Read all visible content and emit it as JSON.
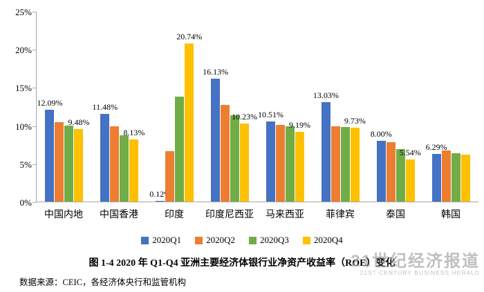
{
  "chart_data": {
    "type": "bar",
    "title": "图 1-4 2020 年 Q1-Q4 亚洲主要经济体银行业净资产收益率（ROE）变化",
    "source": "数据来源：CEIC，各经济体央行和监管机构",
    "categories": [
      "中国内地",
      "中国香港",
      "印度",
      "印度尼西亚",
      "马来西亚",
      "菲律宾",
      "泰国",
      "韩国"
    ],
    "series": [
      {
        "name": "2020Q1",
        "color": "#4472C4",
        "values": [
          12.09,
          11.48,
          0.12,
          16.13,
          10.51,
          13.03,
          8.0,
          6.29
        ]
      },
      {
        "name": "2020Q2",
        "color": "#ED7D31",
        "values": [
          10.4,
          9.9,
          6.6,
          12.7,
          10.1,
          9.9,
          7.8,
          6.7
        ]
      },
      {
        "name": "2020Q3",
        "color": "#70AD47",
        "values": [
          10.0,
          8.7,
          13.8,
          11.3,
          9.9,
          9.8,
          6.9,
          6.3
        ]
      },
      {
        "name": "2020Q4",
        "color": "#FFC000",
        "values": [
          9.48,
          8.13,
          20.74,
          10.23,
          9.19,
          9.73,
          5.54,
          6.2
        ]
      }
    ],
    "data_labels": [
      {
        "category": 0,
        "series": 0,
        "text": "12.09%"
      },
      {
        "category": 0,
        "series": 3,
        "text": "9.48%"
      },
      {
        "category": 1,
        "series": 0,
        "text": "11.48%"
      },
      {
        "category": 1,
        "series": 3,
        "text": "8.13%"
      },
      {
        "category": 2,
        "series": 0,
        "text": "0.12%"
      },
      {
        "category": 2,
        "series": 3,
        "text": "20.74%"
      },
      {
        "category": 3,
        "series": 0,
        "text": "16.13%"
      },
      {
        "category": 3,
        "series": 3,
        "text": "10.23%"
      },
      {
        "category": 4,
        "series": 0,
        "text": "10.51%"
      },
      {
        "category": 4,
        "series": 3,
        "text": "9.19%"
      },
      {
        "category": 5,
        "series": 0,
        "text": "13.03%"
      },
      {
        "category": 5,
        "series": 3,
        "text": "9.73%"
      },
      {
        "category": 6,
        "series": 0,
        "text": "8.00%"
      },
      {
        "category": 6,
        "series": 3,
        "text": "5.54%"
      },
      {
        "category": 7,
        "series": 0,
        "text": "6.29%"
      }
    ],
    "y_ticks": [
      {
        "value": 0,
        "label": "0%"
      },
      {
        "value": 5,
        "label": "5%"
      },
      {
        "value": 10,
        "label": "10%"
      },
      {
        "value": 15,
        "label": "15%"
      },
      {
        "value": 20,
        "label": "20%"
      },
      {
        "value": 25,
        "label": "25%"
      }
    ],
    "ylim": [
      0,
      25
    ],
    "grid": false,
    "legend_position": "bottom"
  },
  "watermark": {
    "line1": "21世纪经济报道",
    "line2": "21ST CENTURY BUSINESS HERALD"
  }
}
